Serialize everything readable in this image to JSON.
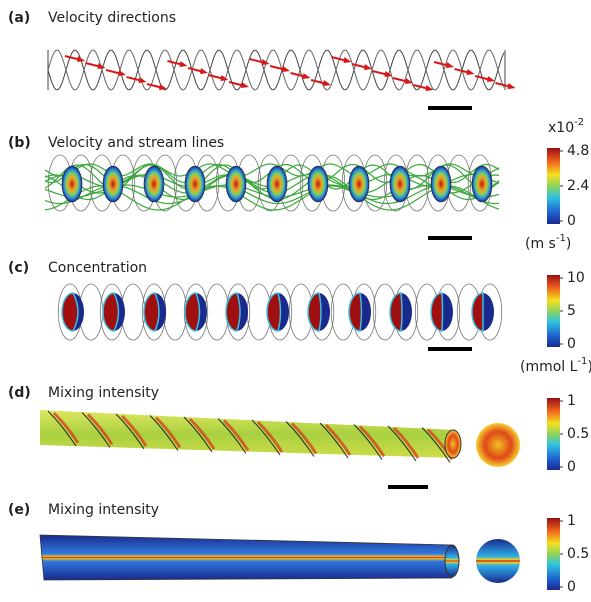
{
  "panels": [
    {
      "label": "(a)",
      "title": "Velocity directions"
    },
    {
      "label": "(b)",
      "title": "Velocity and stream lines",
      "colorbar": {
        "multiplier": "x10",
        "multiplier_exponent": "-2",
        "ticks": [
          0,
          2.4,
          4.8
        ],
        "unit": "(m s",
        "unit_exponent": "-1",
        "unit_end": ")"
      }
    },
    {
      "label": "(c)",
      "title": "Concentration",
      "colorbar": {
        "ticks": [
          0,
          5,
          10
        ],
        "unit": "(mmol L",
        "unit_exponent": "-1",
        "unit_end": ")"
      }
    },
    {
      "label": "(d)",
      "title": "Mixing intensity",
      "colorbar": {
        "ticks": [
          0,
          0.5,
          1
        ]
      }
    },
    {
      "label": "(e)",
      "title": "Mixing intensity",
      "colorbar": {
        "ticks": [
          0,
          0.5,
          1
        ]
      }
    }
  ]
}
